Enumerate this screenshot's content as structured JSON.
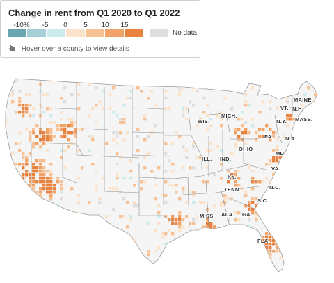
{
  "legend": {
    "title": "Change in rent from Q1 2020 to Q1 2022",
    "tick_labels": [
      "-10%",
      "-5",
      "0",
      "5",
      "10",
      "15"
    ],
    "bins": [
      {
        "min": null,
        "max": -10,
        "color": "#6aa6b1"
      },
      {
        "min": -10,
        "max": -5,
        "color": "#a6ced6"
      },
      {
        "min": -5,
        "max": 0,
        "color": "#cdeaef"
      },
      {
        "min": 0,
        "max": 5,
        "color": "#fbe3cb"
      },
      {
        "min": 5,
        "max": 10,
        "color": "#f6c295"
      },
      {
        "min": 10,
        "max": 15,
        "color": "#f1a267"
      },
      {
        "min": 15,
        "max": null,
        "color": "#e8823f"
      }
    ],
    "no_data_color": "#dedede",
    "no_data_label": "No data"
  },
  "hint": {
    "icon": "pointer-hand-icon",
    "text": "Hover over a county to view details"
  },
  "map": {
    "region": "United States (contiguous), counties",
    "state_labels": [
      "MAINE",
      "VT.",
      "N.H.",
      "N.Y.",
      "MASS.",
      "MICH.",
      "WIS.",
      "PA.",
      "N.J.",
      "OHIO",
      "MD.",
      "ILL.",
      "IND.",
      "VA.",
      "KY.",
      "N.C.",
      "TENN.",
      "S.C.",
      "MISS.",
      "ALA.",
      "GA.",
      "FLA."
    ],
    "land_color": "#f5f5f5",
    "state_border_color": "#7a7a7a"
  }
}
